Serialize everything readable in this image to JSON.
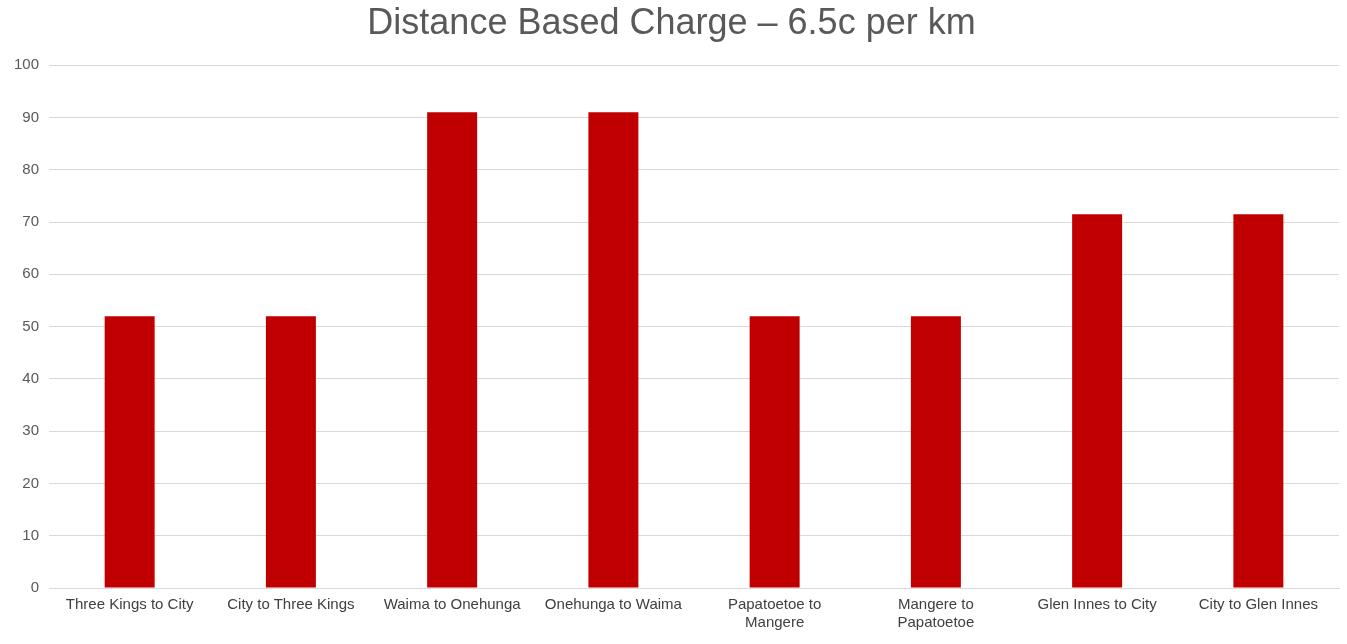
{
  "chart_data": {
    "type": "bar",
    "title": "Distance Based Charge – 6.5c per km",
    "categories": [
      "Three Kings to City",
      "City to Three Kings",
      "Waima to Onehunga",
      "Onehunga to Waima",
      "Papatoetoe to Mangere",
      "Mangere to Papatoetoe",
      "Glen Innes to City",
      "City to Glen Innes"
    ],
    "values": [
      52,
      52,
      91,
      91,
      52,
      52,
      71.5,
      71.5
    ],
    "color": "#c00000",
    "ylim": [
      0,
      100
    ],
    "yticks": [
      0,
      10,
      20,
      30,
      40,
      50,
      60,
      70,
      80,
      90,
      100
    ],
    "grid": "y",
    "legend": false
  }
}
